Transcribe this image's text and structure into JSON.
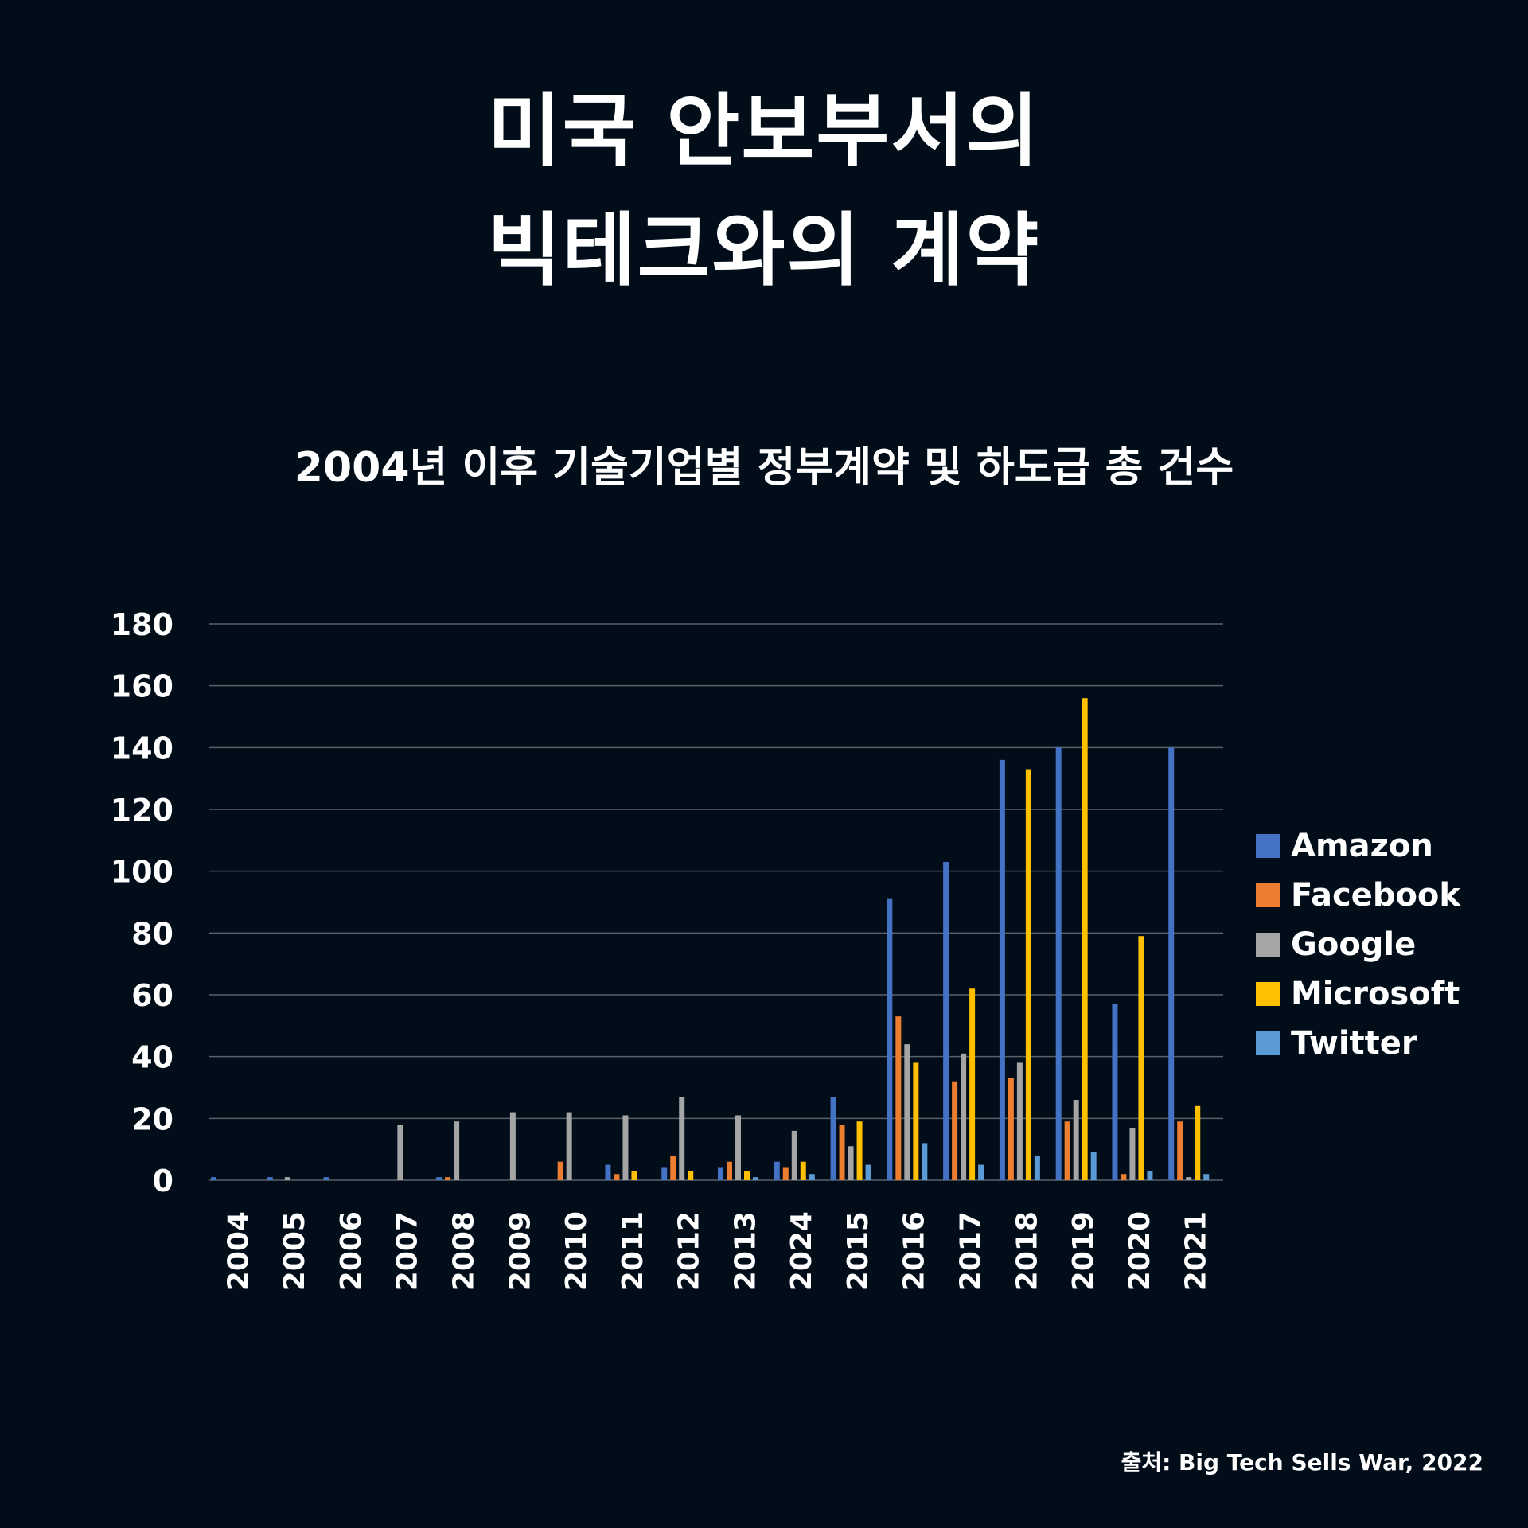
{
  "title": {
    "line1": "미국 안보부서의",
    "line2": "빅테크와의 계약"
  },
  "source": "출처: Big Tech Sells War, 2022",
  "colors": {
    "background": "#010d18",
    "grid": "#5a6068",
    "text": "#ffffff"
  },
  "chart_data": {
    "type": "bar",
    "title": "2004년 이후 기술기업별 정부계약 및 하도급 총 건수",
    "xlabel": "",
    "ylabel": "",
    "ylim": [
      0,
      180
    ],
    "yticks": [
      "0",
      "20",
      "40",
      "60",
      "80",
      "100",
      "120",
      "140",
      "160",
      "180"
    ],
    "grid": true,
    "legend_position": "right",
    "categories": [
      "2004",
      "2005",
      "2006",
      "2007",
      "2008",
      "2009",
      "2010",
      "2011",
      "2012",
      "2013",
      "2024",
      "2015",
      "2016",
      "2017",
      "2018",
      "2019",
      "2020",
      "2021"
    ],
    "series": [
      {
        "name": "Amazon",
        "color": "#4472c4",
        "values": [
          1,
          1,
          1,
          0,
          1,
          0,
          0,
          5,
          4,
          4,
          6,
          27,
          91,
          103,
          136,
          140,
          57,
          140
        ]
      },
      {
        "name": "Facebook",
        "color": "#ed7d31",
        "values": [
          0,
          0,
          0,
          0,
          1,
          0,
          6,
          2,
          8,
          6,
          4,
          18,
          53,
          32,
          33,
          19,
          2,
          19
        ]
      },
      {
        "name": "Google",
        "color": "#a5a5a5",
        "values": [
          0,
          1,
          0,
          18,
          19,
          22,
          22,
          21,
          27,
          21,
          16,
          11,
          44,
          41,
          38,
          26,
          17,
          1
        ]
      },
      {
        "name": "Microsoft",
        "color": "#ffc000",
        "values": [
          0,
          0,
          0,
          0,
          0,
          0,
          0,
          3,
          3,
          3,
          6,
          19,
          38,
          62,
          133,
          156,
          79,
          24
        ]
      },
      {
        "name": "Twitter",
        "color": "#5b9bd5",
        "values": [
          0,
          0,
          0,
          0,
          0,
          0,
          0,
          0,
          0,
          1,
          2,
          5,
          12,
          5,
          8,
          9,
          3,
          2
        ]
      }
    ]
  }
}
